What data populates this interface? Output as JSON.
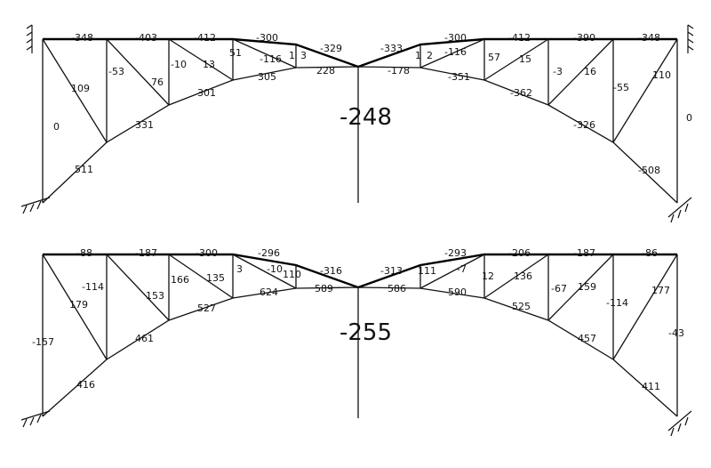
{
  "diagrams": [
    {
      "id": "top",
      "center_value": "-248",
      "top_chord_labels": [
        "-348",
        "-403",
        "-412",
        "-300",
        "-329",
        "-333",
        "-300",
        "-412",
        "-390",
        "-348"
      ],
      "bottom_chord_labels": [
        "511",
        "331",
        "301",
        "305",
        "228",
        "-178",
        "-351",
        "-362",
        "-326",
        "-508"
      ],
      "web_labels": [
        "109",
        "0",
        "-53",
        "76",
        "-10",
        "13",
        "51",
        "-116",
        "1",
        "3",
        "1",
        "2",
        "-116",
        "57",
        "15",
        "-3",
        "16",
        "-55",
        "110",
        "0"
      ]
    },
    {
      "id": "bottom",
      "center_value": "-255",
      "top_chord_labels": [
        "-88",
        "-187",
        "-300",
        "-296",
        "-316",
        "-313",
        "-293",
        "-206",
        "-187",
        "-86"
      ],
      "bottom_chord_labels": [
        "416",
        "461",
        "527",
        "624",
        "589",
        "586",
        "590",
        "525",
        "457",
        "411"
      ],
      "web_labels": [
        "179",
        "-157",
        "-114",
        "153",
        "166",
        "135",
        "3",
        "-10",
        "110",
        "111",
        "-7",
        "12",
        "136",
        "-67",
        "159",
        "-114",
        "177",
        "-43"
      ]
    }
  ]
}
